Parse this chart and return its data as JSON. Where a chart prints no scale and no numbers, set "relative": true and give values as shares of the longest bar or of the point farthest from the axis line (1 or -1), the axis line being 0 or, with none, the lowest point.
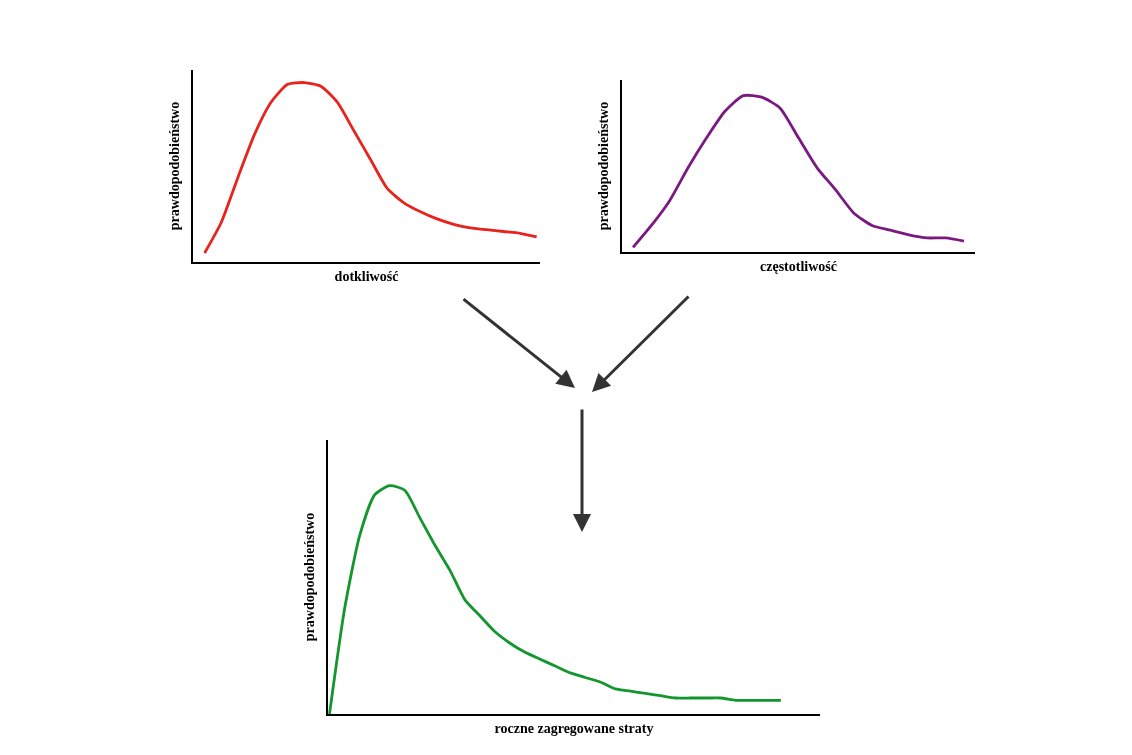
{
  "chart_data": [
    {
      "type": "line",
      "relative": true,
      "xlabel": "dotkliwość",
      "ylabel": "prawdopodobieństwo",
      "tick_labels": false,
      "categories": [
        null,
        null,
        null,
        null,
        null,
        null,
        null,
        null,
        null,
        null,
        null,
        null,
        null,
        null,
        null,
        null,
        null,
        null,
        null,
        null,
        null
      ],
      "series": [
        {
          "color": "#e8231e",
          "values": [
            0.05,
            0.22,
            0.47,
            0.71,
            0.89,
            0.99,
            1,
            0.98,
            0.89,
            0.73,
            0.57,
            0.41,
            0.33,
            0.28,
            0.24,
            0.21,
            0.19,
            0.18,
            0.17,
            0.16,
            0.14
          ]
        }
      ]
    },
    {
      "type": "line",
      "relative": true,
      "xlabel": "częstotliwość",
      "ylabel": "prawdopodobieństwo",
      "tick_labels": false,
      "categories": [
        null,
        null,
        null,
        null,
        null,
        null,
        null,
        null,
        null,
        null,
        null,
        null,
        null,
        null,
        null,
        null,
        null,
        null,
        null
      ],
      "series": [
        {
          "color": "#7a1a80",
          "values": [
            0.03,
            0.17,
            0.33,
            0.54,
            0.73,
            0.9,
            1,
            0.99,
            0.92,
            0.73,
            0.54,
            0.4,
            0.25,
            0.17,
            0.14,
            0.11,
            0.09,
            0.09,
            0.07
          ]
        }
      ]
    },
    {
      "type": "line",
      "relative": true,
      "xlabel": "roczne zagregowane straty",
      "ylabel": "prawdopodobieństwo",
      "tick_labels": false,
      "categories": [
        null,
        null,
        null,
        null,
        null,
        null,
        null,
        null,
        null,
        null,
        null,
        null,
        null,
        null,
        null,
        null,
        null,
        null,
        null,
        null,
        null,
        null,
        null,
        null,
        null,
        null,
        null,
        null,
        null,
        null,
        null
      ],
      "series": [
        {
          "color": "#12962d",
          "values": [
            0,
            0.46,
            0.78,
            0.96,
            1,
            0.98,
            0.86,
            0.74,
            0.63,
            0.5,
            0.43,
            0.36,
            0.31,
            0.27,
            0.24,
            0.21,
            0.18,
            0.16,
            0.14,
            0.11,
            0.1,
            0.09,
            0.08,
            0.07,
            0.07,
            0.07,
            0.07,
            0.06,
            0.06,
            0.06,
            0.06
          ]
        }
      ]
    }
  ]
}
